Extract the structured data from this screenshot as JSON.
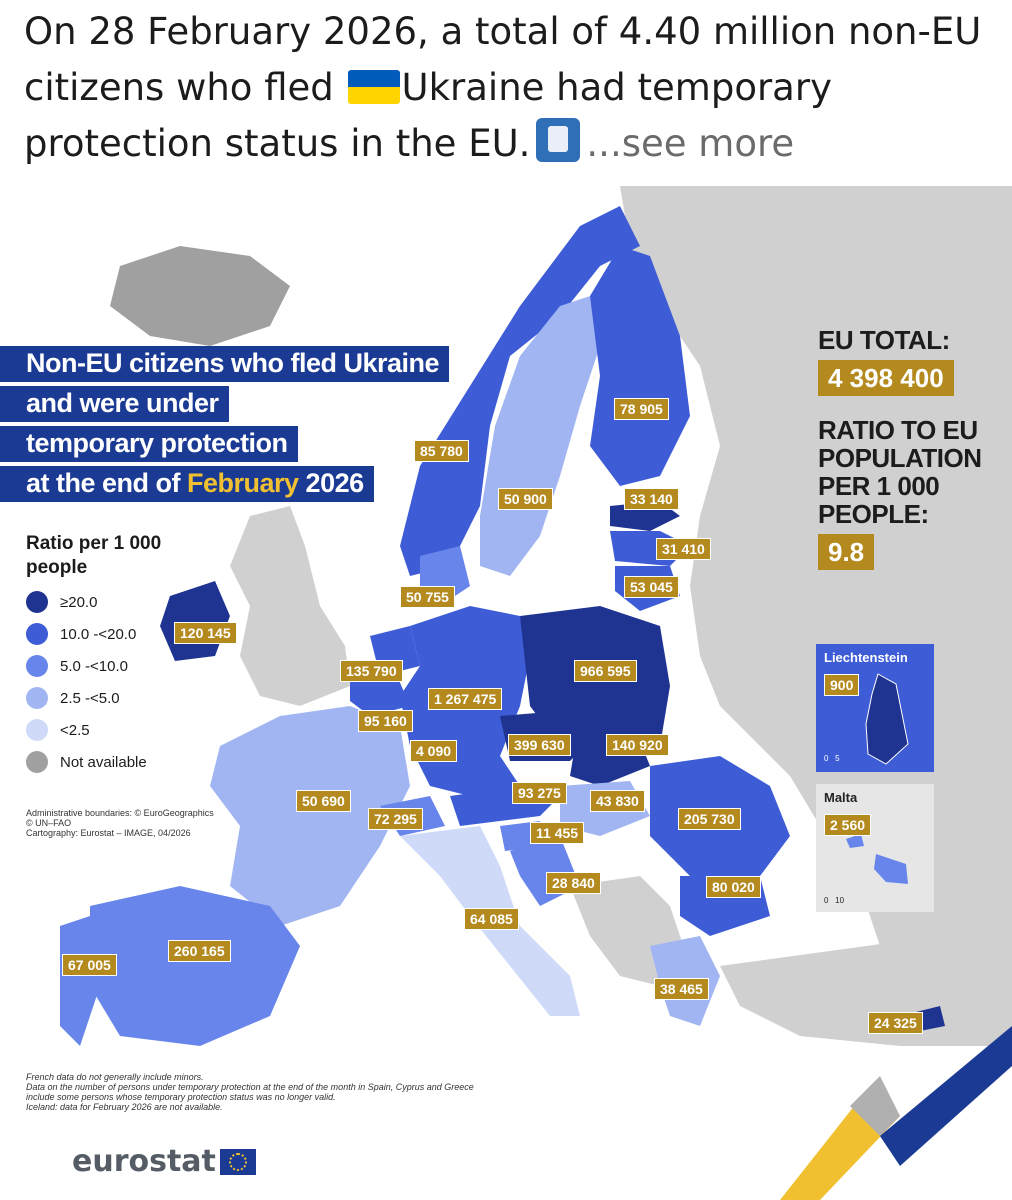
{
  "post": {
    "line1": "On 28 February 2026, a total of 4.40 million non-EU",
    "line2a": "citizens who fled ",
    "line2b": "Ukraine had temporary",
    "line3": "protection status in the EU.",
    "see_more": "...see more",
    "flag_colors": [
      "#005bbb",
      "#ffd500"
    ],
    "emoji_icon": "passport-control-icon"
  },
  "map": {
    "title_lines": [
      "Non-EU citizens who fled Ukraine",
      "and were under",
      "temporary protection"
    ],
    "title_last_pre": "at the end of ",
    "title_last_hl": "February",
    "title_last_post": " 2026",
    "legend": {
      "title": "Ratio per 1 000 people",
      "items": [
        {
          "label": "≥20.0",
          "color": "#1f3391"
        },
        {
          "label": "10.0 -<20.0",
          "color": "#3d5cd6"
        },
        {
          "label": "5.0 -<10.0",
          "color": "#6785ea"
        },
        {
          "label": "2.5 -<5.0",
          "color": "#a1b5f2"
        },
        {
          "label": "<2.5",
          "color": "#cfdaf8"
        },
        {
          "label": "Not available",
          "color": "#a0a0a0"
        }
      ]
    },
    "credits": [
      "Administrative boundaries: © EuroGeographics",
      "© UN–FAO",
      "Cartography: Eurostat – IMAGE, 04/2026"
    ],
    "notes": [
      "French data do not generally include minors.",
      "Data on the number of persons under temporary protection at the end of the month in Spain, Cyprus and Greece",
      "include some persons whose temporary protection status was no longer valid.",
      "Iceland: data for February 2026 are not available."
    ],
    "brand": "eurostat",
    "totals": {
      "eu_total_label": "EU TOTAL:",
      "eu_total_value": "4 398 400",
      "ratio_label_lines": [
        "RATIO TO EU",
        "POPULATION",
        "PER 1 000",
        "PEOPLE:"
      ],
      "ratio_value": "9.8"
    },
    "insets": {
      "liechtenstein": {
        "name": "Liechtenstein",
        "value": "900",
        "scale": [
          "0",
          "5"
        ]
      },
      "malta": {
        "name": "Malta",
        "value": "2 560",
        "scale": [
          "0",
          "10"
        ]
      }
    },
    "countries": {
      "finland": "78 905",
      "norway": "85 780",
      "sweden": "50 900",
      "estonia": "33 140",
      "latvia": "31 410",
      "lithuania": "53 045",
      "denmark": "50 755",
      "ireland": "120 145",
      "netherlands": "135 790",
      "belgium": "95 160",
      "luxembourg": "4 090",
      "germany": "1 267 475",
      "poland": "966 595",
      "czechia": "399 630",
      "slovakia": "140 920",
      "france": "50 690",
      "switzerland": "72 295",
      "austria": "93 275",
      "hungary": "43 830",
      "slovenia": "11 455",
      "romania": "205 730",
      "croatia": "28 840",
      "bulgaria": "80 020",
      "italy": "64 085",
      "spain": "260 165",
      "portugal": "67 005",
      "greece": "38 465",
      "cyprus": "24 325"
    }
  }
}
